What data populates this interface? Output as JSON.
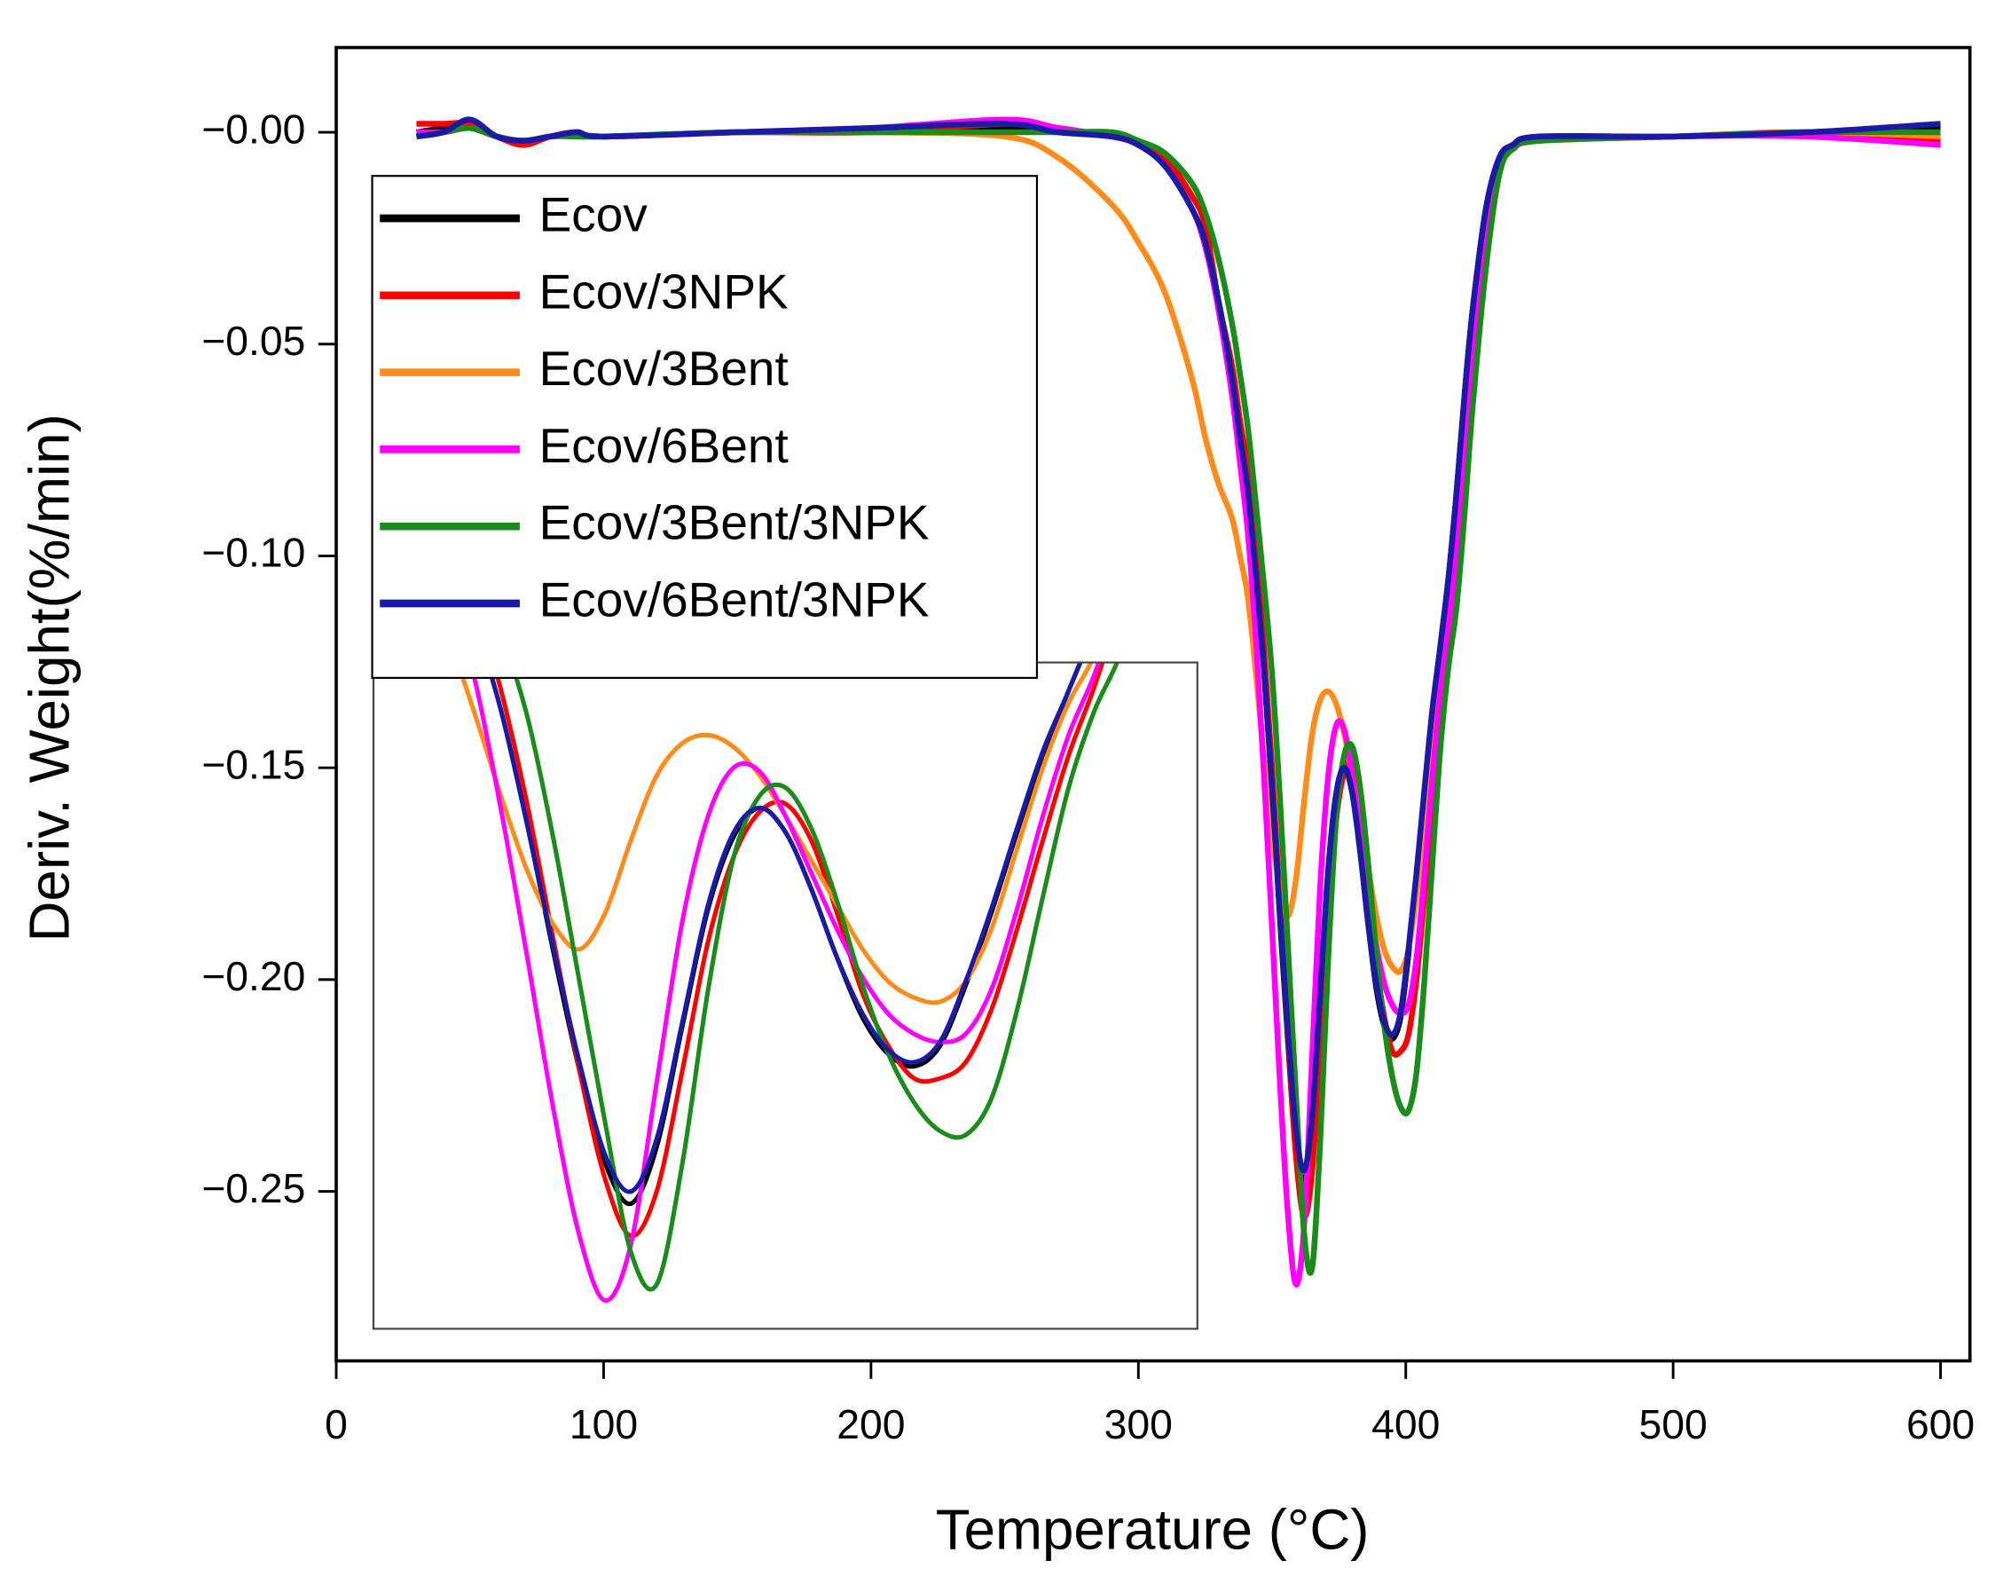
{
  "chart_data": {
    "type": "line",
    "xlabel": "Temperature (°C)",
    "ylabel": "Deriv. Weight(%/min)",
    "xlim": [
      0,
      611
    ],
    "ylim": [
      -0.29,
      0.02
    ],
    "xticks": [
      0,
      100,
      200,
      300,
      400,
      500,
      600
    ],
    "yticks": [
      {
        "value": 0,
        "label": "−0.00"
      },
      {
        "value": -0.05,
        "label": "−0.05"
      },
      {
        "value": -0.1,
        "label": "−0.10"
      },
      {
        "value": -0.15,
        "label": "−0.15"
      },
      {
        "value": -0.2,
        "label": "−0.20"
      },
      {
        "value": -0.25,
        "label": "−0.25"
      }
    ],
    "grid": false,
    "legend": "upper left",
    "inset": {
      "xlim": [
        332,
        428
      ],
      "ylim": [
        -0.279,
        -0.114
      ]
    },
    "x": [
      30,
      40,
      50,
      60,
      70,
      80,
      90,
      100,
      150,
      200,
      250,
      270,
      290,
      300,
      310,
      320,
      325,
      330,
      335,
      338,
      341,
      344,
      347,
      350,
      353,
      356,
      359,
      362,
      365,
      368,
      371,
      374,
      377,
      380,
      383,
      386,
      389,
      392,
      395,
      398,
      401,
      404,
      407,
      410,
      413,
      416,
      419,
      422,
      425,
      430,
      435,
      440,
      450,
      500,
      550,
      600
    ],
    "series": [
      {
        "name": "Ecov",
        "color": "#000000",
        "values": [
          0,
          0.001,
          0.002,
          -0.001,
          -0.002,
          -0.001,
          0,
          -0.001,
          0,
          0,
          0.001,
          0,
          -0.001,
          -0.003,
          -0.008,
          -0.018,
          -0.026,
          -0.04,
          -0.058,
          -0.072,
          -0.085,
          -0.105,
          -0.127,
          -0.155,
          -0.186,
          -0.215,
          -0.238,
          -0.248,
          -0.234,
          -0.204,
          -0.175,
          -0.157,
          -0.15,
          -0.156,
          -0.17,
          -0.187,
          -0.202,
          -0.211,
          -0.214,
          -0.209,
          -0.194,
          -0.176,
          -0.156,
          -0.137,
          -0.121,
          -0.105,
          -0.085,
          -0.062,
          -0.042,
          -0.018,
          -0.006,
          -0.003,
          -0.001,
          -0.001,
          0,
          0.001
        ]
      },
      {
        "name": "Ecov/3NPK",
        "color": "#ff0000",
        "values": [
          0.002,
          0.002,
          0.002,
          -0.001,
          -0.003,
          -0.001,
          0,
          -0.001,
          0,
          0,
          0.002,
          0.001,
          -0.001,
          -0.002,
          -0.006,
          -0.015,
          -0.022,
          -0.04,
          -0.055,
          -0.068,
          -0.08,
          -0.1,
          -0.122,
          -0.15,
          -0.183,
          -0.215,
          -0.242,
          -0.256,
          -0.245,
          -0.215,
          -0.183,
          -0.162,
          -0.151,
          -0.149,
          -0.158,
          -0.176,
          -0.196,
          -0.209,
          -0.217,
          -0.217,
          -0.213,
          -0.2,
          -0.18,
          -0.158,
          -0.137,
          -0.12,
          -0.1,
          -0.078,
          -0.055,
          -0.025,
          -0.008,
          -0.004,
          -0.002,
          -0.001,
          0,
          -0.002
        ]
      },
      {
        "name": "Ecov/3Bent",
        "color": "#ff8c1a",
        "values": [
          0,
          0,
          0.001,
          -0.001,
          -0.002,
          -0.001,
          0,
          -0.001,
          0,
          0,
          -0.001,
          -0.006,
          -0.017,
          -0.026,
          -0.038,
          -0.058,
          -0.072,
          -0.083,
          -0.091,
          -0.1,
          -0.11,
          -0.128,
          -0.148,
          -0.166,
          -0.179,
          -0.185,
          -0.176,
          -0.158,
          -0.142,
          -0.134,
          -0.132,
          -0.135,
          -0.142,
          -0.152,
          -0.163,
          -0.174,
          -0.185,
          -0.193,
          -0.197,
          -0.198,
          -0.193,
          -0.18,
          -0.16,
          -0.14,
          -0.124,
          -0.112,
          -0.092,
          -0.07,
          -0.048,
          -0.02,
          -0.007,
          -0.003,
          -0.002,
          -0.001,
          0,
          -0.001
        ]
      },
      {
        "name": "Ecov/6Bent",
        "color": "#ff00ff",
        "values": [
          0,
          0,
          0.001,
          -0.001,
          -0.002,
          -0.001,
          0,
          -0.001,
          0,
          0.001,
          0.003,
          0.001,
          -0.001,
          -0.003,
          -0.008,
          -0.018,
          -0.027,
          -0.042,
          -0.062,
          -0.078,
          -0.095,
          -0.12,
          -0.152,
          -0.188,
          -0.225,
          -0.256,
          -0.272,
          -0.258,
          -0.218,
          -0.178,
          -0.152,
          -0.14,
          -0.141,
          -0.152,
          -0.166,
          -0.18,
          -0.192,
          -0.201,
          -0.206,
          -0.208,
          -0.206,
          -0.195,
          -0.175,
          -0.152,
          -0.132,
          -0.117,
          -0.098,
          -0.075,
          -0.052,
          -0.024,
          -0.008,
          -0.004,
          -0.002,
          -0.001,
          -0.001,
          -0.003
        ]
      },
      {
        "name": "Ecov/3Bent/3NPK",
        "color": "#1a8c1a",
        "values": [
          -0.001,
          0,
          0.001,
          -0.001,
          -0.002,
          -0.001,
          -0.001,
          -0.001,
          0,
          0,
          0,
          0,
          0,
          -0.002,
          -0.005,
          -0.012,
          -0.019,
          -0.03,
          -0.045,
          -0.057,
          -0.07,
          -0.088,
          -0.107,
          -0.128,
          -0.158,
          -0.193,
          -0.228,
          -0.26,
          -0.268,
          -0.238,
          -0.195,
          -0.162,
          -0.147,
          -0.145,
          -0.155,
          -0.173,
          -0.194,
          -0.211,
          -0.223,
          -0.23,
          -0.231,
          -0.222,
          -0.2,
          -0.172,
          -0.145,
          -0.126,
          -0.112,
          -0.09,
          -0.065,
          -0.032,
          -0.01,
          -0.004,
          -0.002,
          -0.001,
          0,
          0
        ]
      },
      {
        "name": "Ecov/6Bent/3NPK",
        "color": "#1a1aa6",
        "values": [
          -0.001,
          0,
          0.003,
          -0.001,
          -0.002,
          -0.001,
          0,
          -0.001,
          0,
          0.001,
          0.002,
          0,
          -0.001,
          -0.003,
          -0.008,
          -0.018,
          -0.026,
          -0.04,
          -0.058,
          -0.072,
          -0.085,
          -0.105,
          -0.127,
          -0.155,
          -0.185,
          -0.213,
          -0.236,
          -0.245,
          -0.232,
          -0.203,
          -0.174,
          -0.156,
          -0.15,
          -0.156,
          -0.17,
          -0.187,
          -0.201,
          -0.21,
          -0.213,
          -0.208,
          -0.193,
          -0.175,
          -0.155,
          -0.136,
          -0.121,
          -0.105,
          -0.085,
          -0.062,
          -0.042,
          -0.018,
          -0.006,
          -0.003,
          -0.001,
          -0.001,
          0,
          0.002
        ]
      }
    ]
  }
}
